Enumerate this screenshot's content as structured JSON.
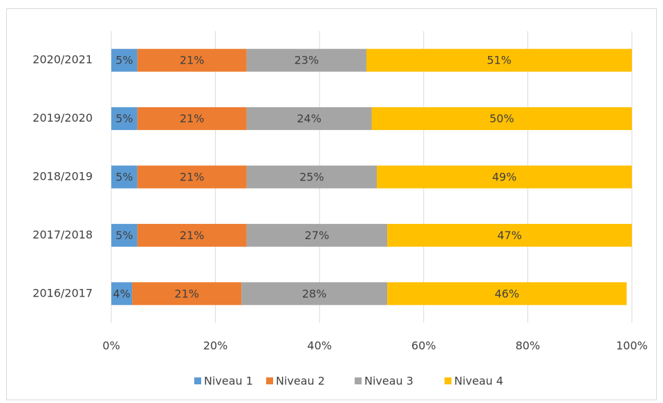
{
  "chart_data": {
    "type": "bar",
    "orientation": "horizontal",
    "stacked": true,
    "categories": [
      "2020/2021",
      "2019/2020",
      "2018/2019",
      "2017/2018",
      "2016/2017"
    ],
    "series": [
      {
        "name": "Niveau 1",
        "color": "#5b9bd5",
        "values": [
          5,
          5,
          5,
          5,
          4
        ],
        "value_labels": [
          "5%",
          "5%",
          "5%",
          "5%",
          "4%"
        ]
      },
      {
        "name": "Niveau 2",
        "color": "#ed7d31",
        "values": [
          21,
          21,
          21,
          21,
          21
        ],
        "value_labels": [
          "21%",
          "21%",
          "21%",
          "21%",
          "21%"
        ]
      },
      {
        "name": "Niveau 3",
        "color": "#a5a5a5",
        "values": [
          23,
          24,
          25,
          27,
          28
        ],
        "value_labels": [
          "23%",
          "24%",
          "25%",
          "27%",
          "28%"
        ]
      },
      {
        "name": "Niveau 4",
        "color": "#ffc000",
        "values": [
          51,
          50,
          49,
          47,
          46
        ],
        "value_labels": [
          "51%",
          "50%",
          "49%",
          "47%",
          "46%"
        ]
      }
    ],
    "xlim": [
      0,
      100
    ],
    "xticks": [
      {
        "value": 0,
        "label": "0%"
      },
      {
        "value": 20,
        "label": "20%"
      },
      {
        "value": 40,
        "label": "40%"
      },
      {
        "value": 60,
        "label": "60%"
      },
      {
        "value": 80,
        "label": "80%"
      },
      {
        "value": 100,
        "label": "100%"
      }
    ],
    "grid": true,
    "legend": "bottom"
  }
}
